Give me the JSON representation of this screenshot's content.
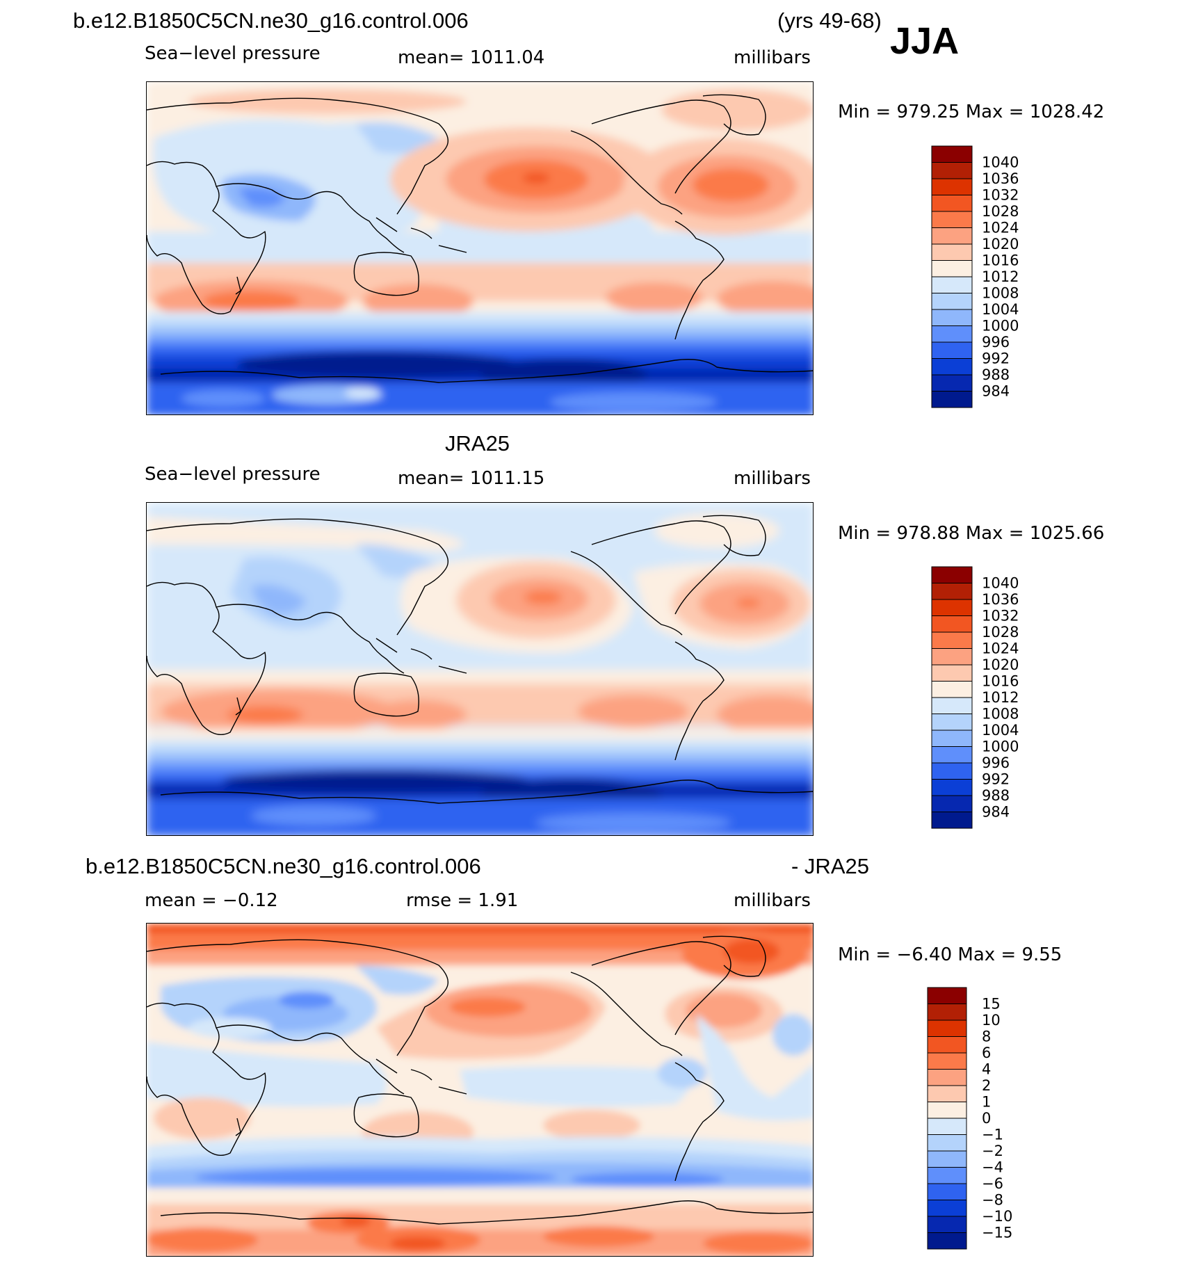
{
  "header": {
    "case_title": "b.e12.B1850C5CN.ne30_g16.control.006",
    "years": "(yrs 49-68)",
    "season": "JJA"
  },
  "panels": [
    {
      "id": "model",
      "variable": "Sea−level pressure",
      "mean_text": "mean=  1011.04",
      "units": "millibars",
      "minmax": "Min  =  979.25  Max  =  1028.42",
      "min": 979.25,
      "max": 1028.42,
      "mean": 1011.04
    },
    {
      "id": "obs",
      "title": "JRA25",
      "variable": "Sea−level pressure",
      "mean_text": "mean=  1011.15",
      "units": "millibars",
      "minmax": "Min  =  978.88  Max  =  1025.66",
      "min": 978.88,
      "max": 1025.66,
      "mean": 1011.15
    },
    {
      "id": "diff",
      "title_left": "b.e12.B1850C5CN.ne30_g16.control.006",
      "title_right": "- JRA25",
      "mean_text": "mean  =    −0.12",
      "rmse_text": "rmse  =      1.91",
      "units": "millibars",
      "minmax": "Min  =    −6.40  Max  =      9.55",
      "min": -6.4,
      "max": 9.55,
      "mean": -0.12,
      "rmse": 1.91
    }
  ],
  "colorbars": {
    "pressure": {
      "labels": [
        "1040",
        "1036",
        "1032",
        "1028",
        "1024",
        "1020",
        "1016",
        "1012",
        "1008",
        "1004",
        "1000",
        "996",
        "992",
        "988",
        "984"
      ],
      "colors": [
        "#8b0000",
        "#b22005",
        "#dd3300",
        "#f25622",
        "#fb7a4a",
        "#fca281",
        "#fdc9b0",
        "#fcefe2",
        "#d6e8fa",
        "#b4d3fb",
        "#8fb7fb",
        "#5f8ffb",
        "#2f63f0",
        "#0b3fd6",
        "#0628b0",
        "#001a8e"
      ]
    },
    "difference": {
      "labels": [
        "15",
        "10",
        "8",
        "6",
        "4",
        "2",
        "1",
        "0",
        "−1",
        "−2",
        "−4",
        "−6",
        "−8",
        "−10",
        "−15"
      ],
      "colors": [
        "#8b0000",
        "#b22005",
        "#dd3300",
        "#f25622",
        "#fb7a4a",
        "#fca281",
        "#fdc9b0",
        "#fcefe2",
        "#d6e8fa",
        "#b4d3fb",
        "#8fb7fb",
        "#5f8ffb",
        "#2f63f0",
        "#0b3fd6",
        "#0628b0",
        "#001a8e"
      ]
    }
  }
}
